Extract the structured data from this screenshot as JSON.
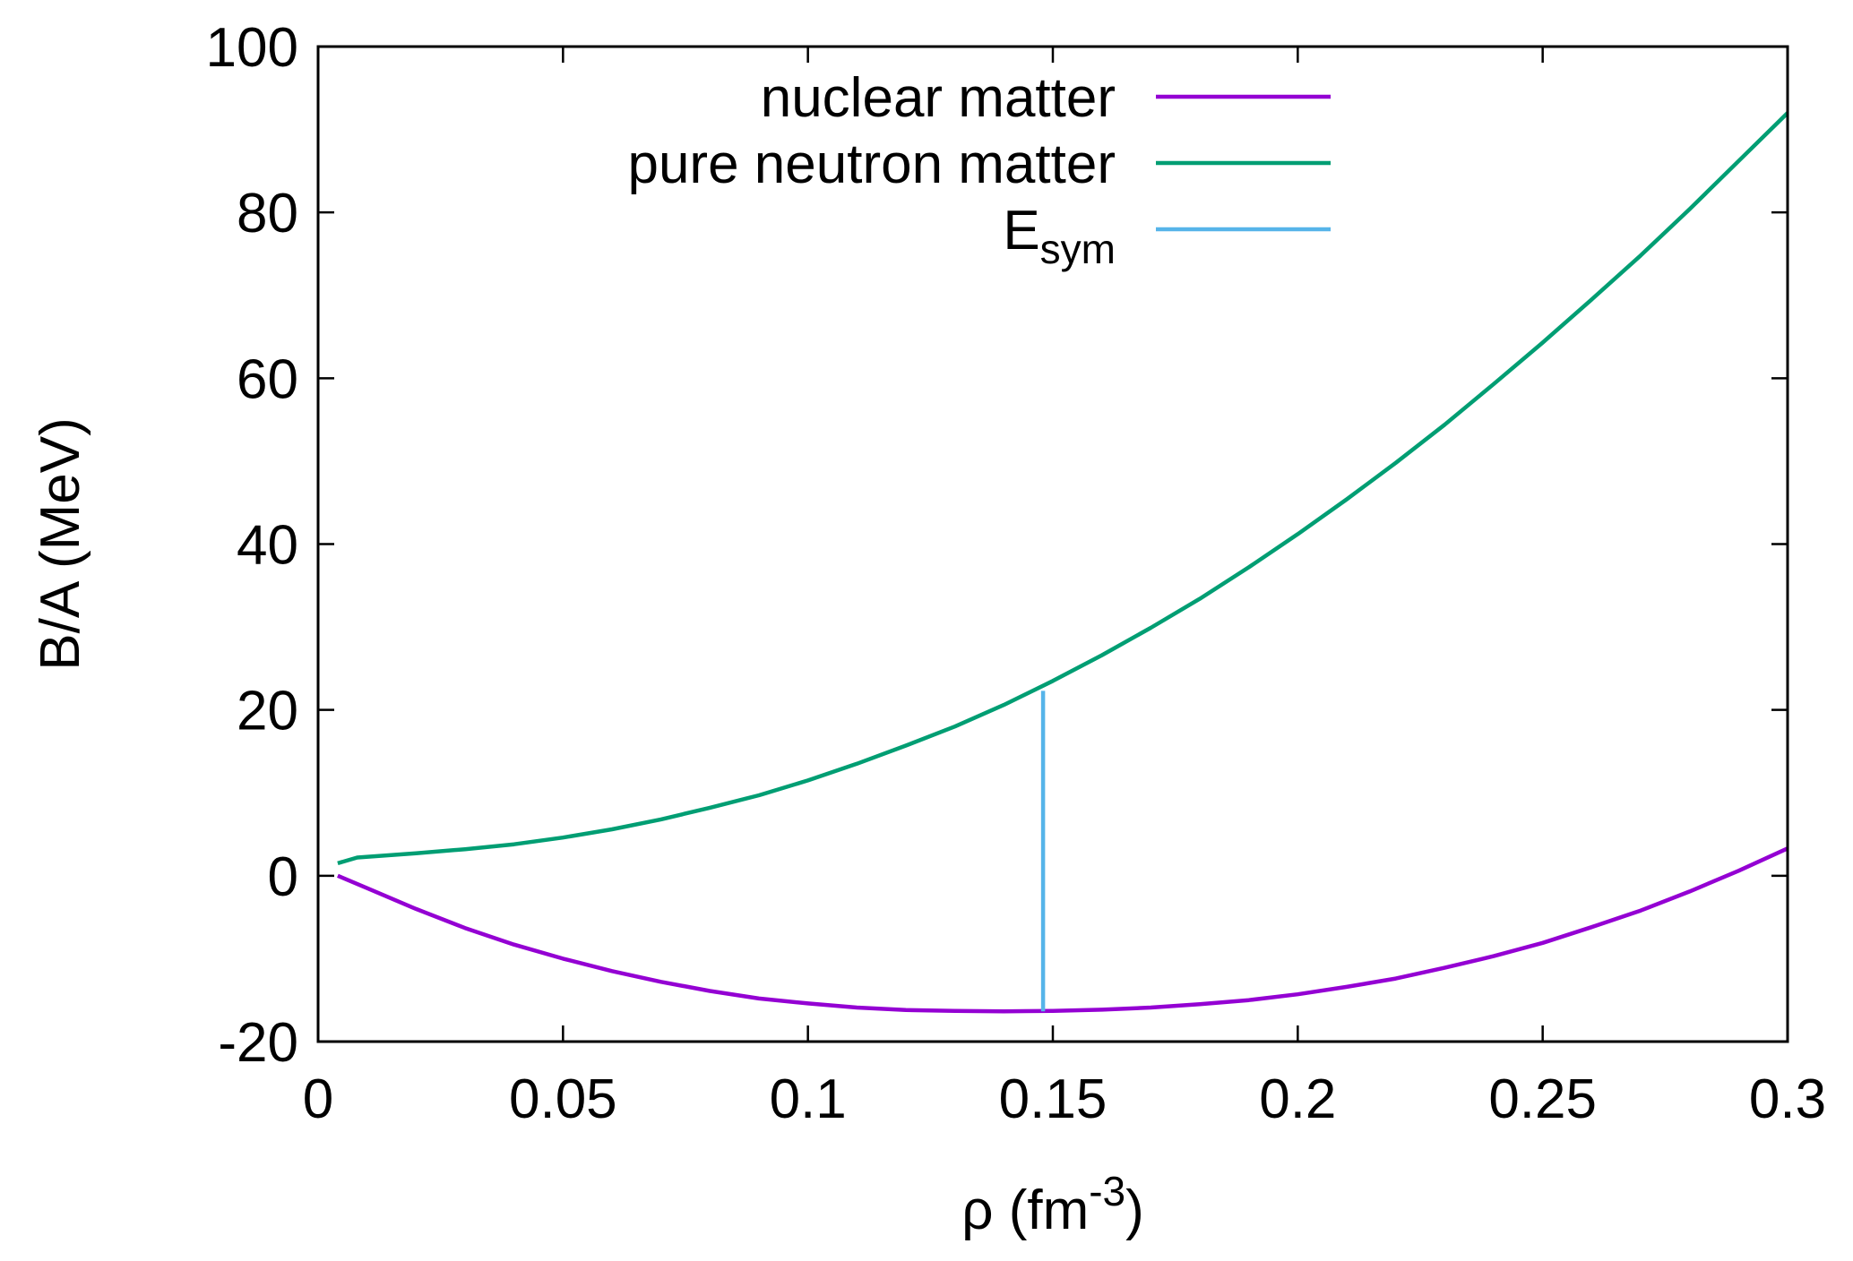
{
  "chart_data": {
    "type": "line",
    "title": "",
    "xlabel": {
      "base": "ρ (fm",
      "sup": "-3",
      "tail": ")"
    },
    "ylabel": "B/A (MeV)",
    "xlim": [
      0,
      0.3
    ],
    "ylim": [
      -20,
      100
    ],
    "xticks": [
      0,
      0.05,
      0.1,
      0.15,
      0.2,
      0.25,
      0.3
    ],
    "xtick_labels": [
      "0",
      "0.05",
      "0.1",
      "0.15",
      "0.2",
      "0.25",
      "0.3"
    ],
    "yticks": [
      -20,
      0,
      20,
      40,
      60,
      80,
      100
    ],
    "ytick_labels": [
      "-20",
      "0",
      "20",
      "40",
      "60",
      "80",
      "100"
    ],
    "grid": false,
    "legend_position": "top-right",
    "series": [
      {
        "name": "nuclear matter",
        "color": "#9400d3",
        "x": [
          0.004,
          0.01,
          0.02,
          0.03,
          0.04,
          0.05,
          0.06,
          0.07,
          0.08,
          0.09,
          0.1,
          0.11,
          0.12,
          0.13,
          0.14,
          0.15,
          0.16,
          0.17,
          0.18,
          0.19,
          0.2,
          0.21,
          0.22,
          0.23,
          0.24,
          0.25,
          0.26,
          0.27,
          0.28,
          0.29,
          0.3
        ],
        "y": [
          0.0,
          -1.5,
          -4.0,
          -6.3,
          -8.3,
          -10.0,
          -11.5,
          -12.8,
          -13.9,
          -14.8,
          -15.4,
          -15.9,
          -16.2,
          -16.3,
          -16.35,
          -16.3,
          -16.15,
          -15.9,
          -15.5,
          -15.0,
          -14.3,
          -13.4,
          -12.4,
          -11.1,
          -9.7,
          -8.1,
          -6.2,
          -4.2,
          -1.9,
          0.6,
          3.3
        ]
      },
      {
        "name": "pure neutron matter",
        "color": "#009e73",
        "x": [
          0.004,
          0.008,
          0.02,
          0.03,
          0.04,
          0.05,
          0.06,
          0.07,
          0.08,
          0.09,
          0.1,
          0.11,
          0.12,
          0.13,
          0.14,
          0.15,
          0.16,
          0.17,
          0.18,
          0.19,
          0.2,
          0.21,
          0.22,
          0.23,
          0.24,
          0.25,
          0.26,
          0.27,
          0.28,
          0.29,
          0.3
        ],
        "y": [
          1.5,
          2.2,
          2.7,
          3.2,
          3.8,
          4.6,
          5.6,
          6.8,
          8.2,
          9.7,
          11.5,
          13.5,
          15.7,
          18.0,
          20.6,
          23.5,
          26.6,
          29.9,
          33.4,
          37.2,
          41.2,
          45.4,
          49.8,
          54.4,
          59.3,
          64.3,
          69.5,
          74.8,
          80.4,
          86.2,
          92.0
        ]
      },
      {
        "name": "E",
        "name_sub": "sym",
        "color": "#56b4e9",
        "x": [
          0.148,
          0.148
        ],
        "y": [
          -16.35,
          22.3
        ]
      }
    ]
  }
}
